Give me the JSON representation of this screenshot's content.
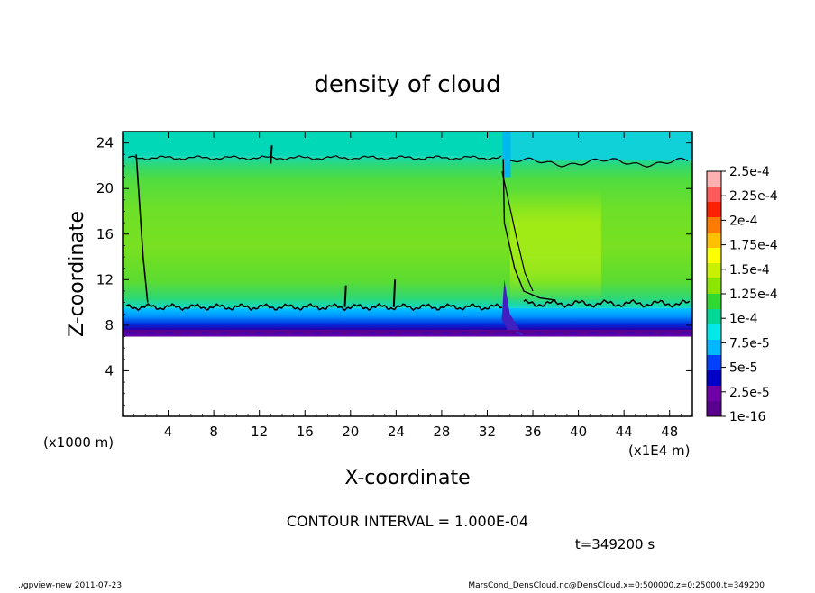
{
  "chart_data": {
    "type": "heatmap",
    "title": "density of cloud",
    "xlabel": "X-coordinate",
    "ylabel": "Z-coordinate",
    "x_unit": "(x1E4 m)",
    "z_unit": "(x1000 m)",
    "xlim": [
      0,
      50
    ],
    "ylim": [
      0,
      25
    ],
    "x_ticks": [
      4,
      8,
      12,
      16,
      20,
      24,
      28,
      32,
      36,
      40,
      44,
      48
    ],
    "y_ticks": [
      4,
      8,
      12,
      16,
      20,
      24
    ],
    "colorbar": {
      "labels": [
        "2.5e-4",
        "2.25e-4",
        "2e-4",
        "1.75e-4",
        "1.5e-4",
        "1.25e-4",
        "1e-4",
        "7.5e-5",
        "5e-5",
        "2.5e-5",
        "1e-16"
      ],
      "colors": [
        "#ffb0b0",
        "#ff5a5a",
        "#ff2000",
        "#ff7a00",
        "#ffc000",
        "#ffff00",
        "#c8f000",
        "#8ce600",
        "#30d830",
        "#00d898",
        "#00e8e8",
        "#00b8ff",
        "#0040ff",
        "#0000c8",
        "#7000a8",
        "#5a0090"
      ]
    },
    "field": {
      "cloud_base_z": 7,
      "main_band": {
        "z_bottom": 9.5,
        "z_top": 22.8,
        "typical_density": 0.00013
      },
      "high_density_region": {
        "x_range": [
          34,
          42
        ],
        "z_range": [
          10,
          20
        ],
        "density": 0.00015
      },
      "disturbance_x": 33.5
    },
    "annotation": "CONTOUR INTERVAL = 1.000E-04",
    "time": "t=349200 s",
    "footer_left": "./gpview-new   2011-07-23",
    "footer_right": "MarsCond_DensCloud.nc@DensCloud,x=0:500000,z=0:25000,t=349200"
  }
}
